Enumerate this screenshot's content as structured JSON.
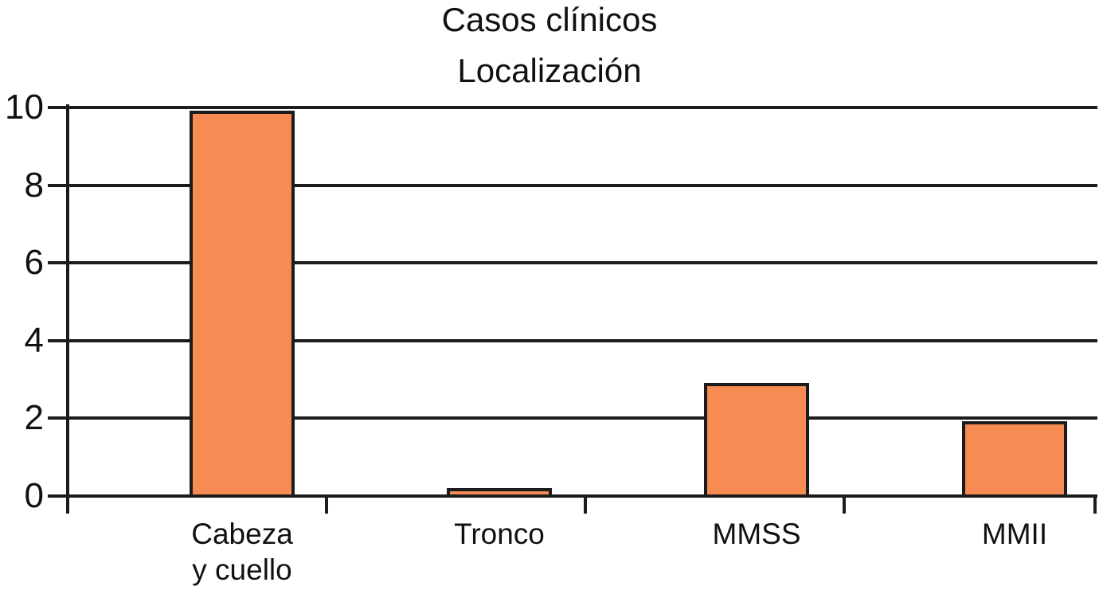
{
  "page": {
    "background": "#ffffff"
  },
  "chart_data": {
    "type": "bar",
    "title": "Casos clínicos",
    "subtitle": "Localización",
    "categories": [
      "Cabeza y cuello",
      "Tronco",
      "MMSS",
      "MMII"
    ],
    "category_display_lines": [
      [
        "Cabeza",
        "y cuello"
      ],
      [
        "Tronco"
      ],
      [
        "MMSS"
      ],
      [
        "MMII"
      ]
    ],
    "values": [
      10,
      0.1,
      3,
      2
    ],
    "ylim": [
      0,
      10
    ],
    "yticks": [
      0,
      2,
      4,
      6,
      8,
      10
    ],
    "xlabel": "",
    "ylabel": "",
    "grid": "horizontal",
    "legend": "none",
    "bar_fill_color": "#F68B54",
    "bar_border_color": "#1C1C1C",
    "axis_color": "#1C1C1C",
    "text_color": "#111111"
  }
}
